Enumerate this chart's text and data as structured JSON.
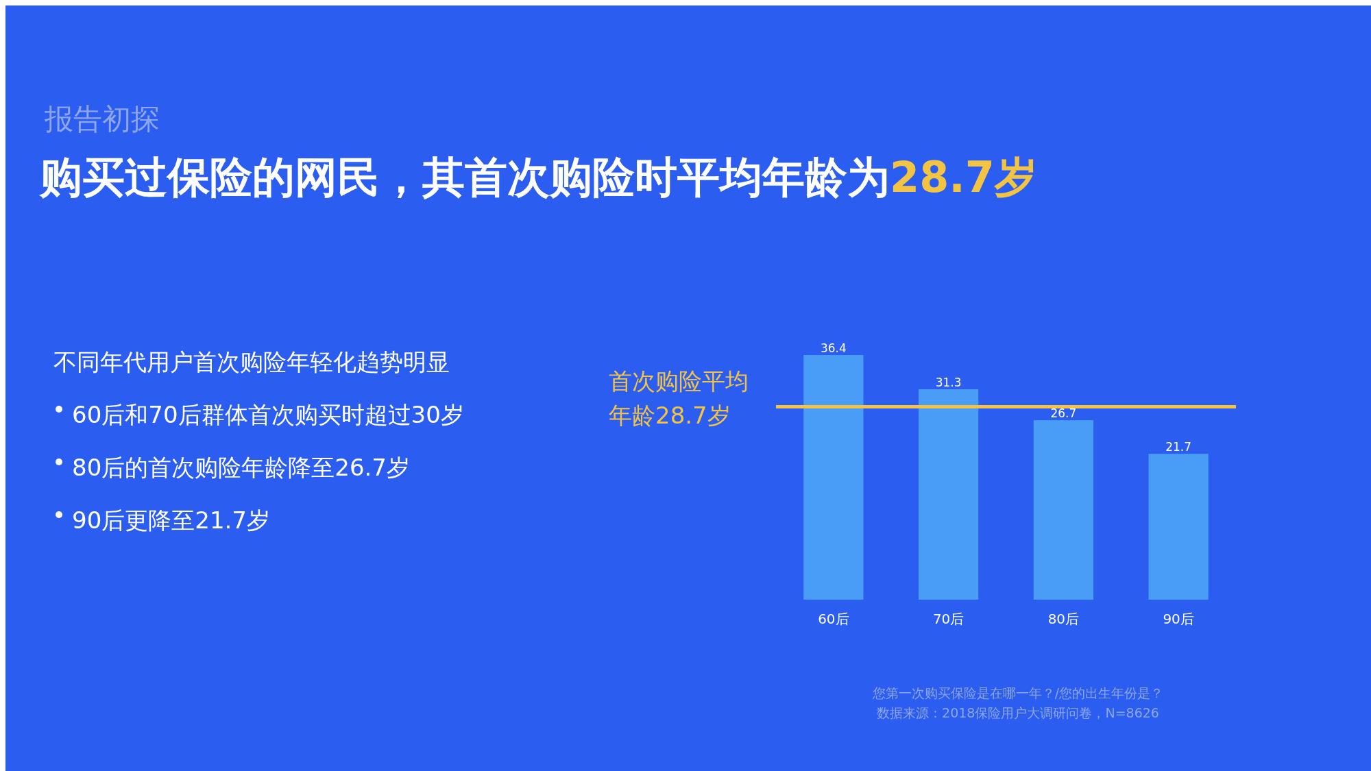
{
  "chart_data": {
    "type": "bar",
    "subtitle": "报告初探",
    "title": "购买过保险的网民，其首次购险时平均年龄为28.7岁",
    "categories": [
      "60后",
      "70后",
      "80后",
      "90后"
    ],
    "values": [
      36.4,
      31.3,
      26.7,
      21.7
    ],
    "color": "#4a9df7",
    "data_labels": true,
    "ref_lines": [
      {
        "axis": "y",
        "value": 28.7,
        "label": "首次购险平均年龄28.7岁",
        "color": "#f3c444"
      }
    ],
    "annotations": [
      "不同年代用户首次购险年轻化趋势明显",
      "60后和70后群体首次购买时超过30岁",
      "80后的首次购险年龄降至26.7岁",
      "90后更降至21.7岁",
      "您第一次购买保险是在哪一年？/您的出生年份是？",
      "数据来源：2018保险用户大调研问卷，N=8626"
    ]
  }
}
